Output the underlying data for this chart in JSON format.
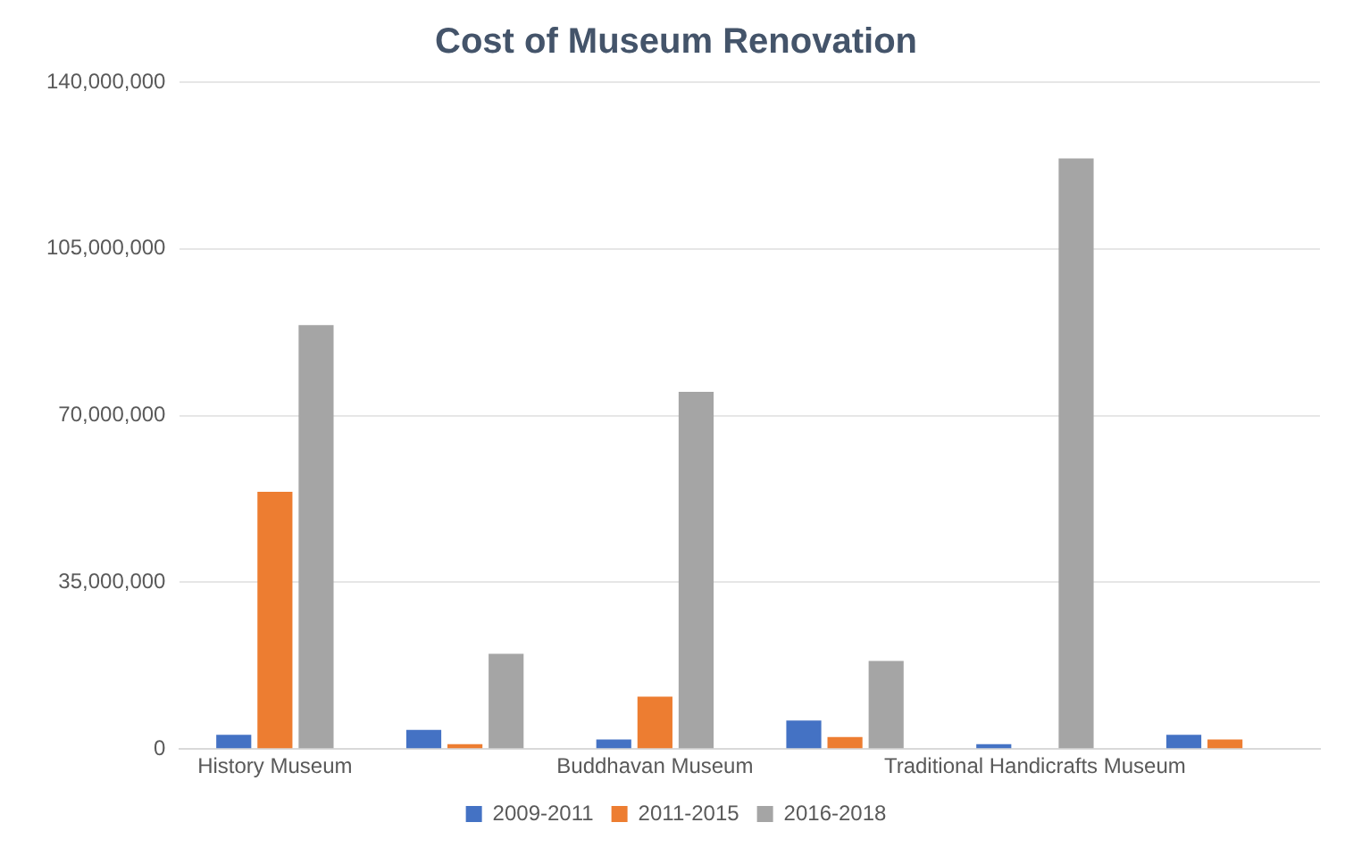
{
  "chart_data": {
    "type": "bar",
    "title": "Cost of Museum Renovation",
    "categories": [
      "History Museum",
      null,
      "Buddhavan Museum",
      null,
      "Traditional Handicrafts Museum",
      null
    ],
    "series": [
      {
        "name": "2009-2011",
        "color": "#4472c4",
        "values": [
          3000000,
          4000000,
          2000000,
          6000000,
          1000000,
          3000000
        ]
      },
      {
        "name": "2011-2015",
        "color": "#ed7d31",
        "values": [
          54000000,
          1000000,
          11000000,
          2500000,
          null,
          2000000
        ]
      },
      {
        "name": "2016-2018",
        "color": "#a5a5a5",
        "values": [
          89000000,
          20000000,
          75000000,
          18500000,
          124000000,
          null
        ]
      }
    ],
    "ylim": [
      0,
      140000000
    ],
    "yticks": [
      {
        "value": 0,
        "label": "0"
      },
      {
        "value": 35000000,
        "label": "35,000,000"
      },
      {
        "value": 70000000,
        "label": "70,000,000"
      },
      {
        "value": 105000000,
        "label": "105,000,000"
      },
      {
        "value": 140000000,
        "label": "140,000,000"
      }
    ],
    "grid": "y",
    "legend": "bottom"
  }
}
